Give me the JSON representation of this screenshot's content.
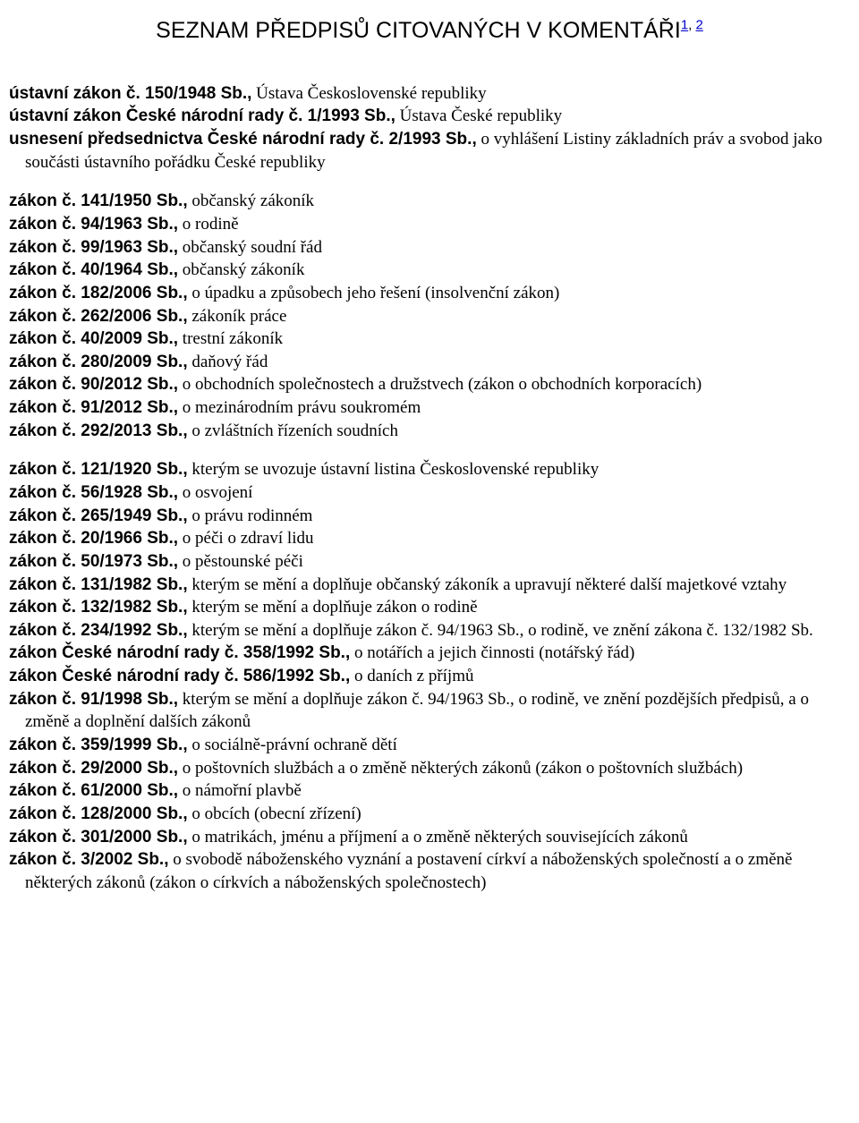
{
  "title": "SEZNAM PŘEDPISŮ CITOVANÝCH V KOMENTÁŘI",
  "footnote1": "1",
  "footnote_sep": ", ",
  "footnote2": "2",
  "blocks": [
    {
      "items": [
        {
          "ref": "ústavní zákon č. 150/1948 Sb.,",
          "desc": " Ústava Československé republiky"
        },
        {
          "ref": "ústavní zákon České národní rady č. 1/1993 Sb.,",
          "desc": " Ústava České republiky"
        },
        {
          "ref": "usnesení předsednictva České národní rady č. 2/1993 Sb.,",
          "desc": " o vyhlášení Listiny základních práv a svobod jako součásti ústavního pořádku České republiky"
        }
      ]
    },
    {
      "items": [
        {
          "ref": "zákon č. 141/1950 Sb.,",
          "desc": " občanský zákoník"
        },
        {
          "ref": "zákon č.  94/1963 Sb.,",
          "desc": " o rodině"
        },
        {
          "ref": "zákon č. 99/1963 Sb.,",
          "desc": " občanský soudní řád"
        },
        {
          "ref": "zákon č. 40/1964 Sb.,",
          "desc": " občanský zákoník"
        },
        {
          "ref": "zákon č. 182/2006 Sb.,",
          "desc": " o úpadku a způsobech jeho řešení (insolvenční zákon)"
        },
        {
          "ref": "zákon č. 262/2006 Sb.,",
          "desc": " zákoník práce"
        },
        {
          "ref": "zákon č. 40/2009 Sb.,",
          "desc": " trestní zákoník"
        },
        {
          "ref": "zákon č. 280/2009 Sb.,",
          "desc": " daňový řád"
        },
        {
          "ref": "zákon č. 90/2012 Sb.,",
          "desc": " o obchodních společnostech a družstvech (zákon o obchodních korporacích)"
        },
        {
          "ref": "zákon č. 91/2012 Sb.,",
          "desc": " o mezinárodním právu soukromém"
        },
        {
          "ref": "zákon č. 292/2013 Sb.,",
          "desc": " o zvláštních řízeních soudních"
        }
      ]
    },
    {
      "items": [
        {
          "ref": "zákon č. 121/1920 Sb.,",
          "desc": " kterým se uvozuje ústavní listina Československé republiky"
        },
        {
          "ref": "zákon č. 56/1928 Sb.,",
          "desc": " o osvojení"
        },
        {
          "ref": "zákon č. 265/1949 Sb.,",
          "desc": " o právu rodinném"
        },
        {
          "ref": "zákon č. 20/1966 Sb.,",
          "desc": " o péči o zdraví lidu"
        },
        {
          "ref": "zákon č. 50/1973 Sb.,",
          "desc": " o pěstounské péči"
        },
        {
          "ref": "zákon č. 131/1982 Sb.,",
          "desc": " kterým se mění a doplňuje občanský zákoník a upravují některé další majetkové vztahy"
        },
        {
          "ref": "zákon č. 132/1982 Sb.,",
          "desc": " kterým se mění a doplňuje zákon o rodině"
        },
        {
          "ref": "zákon č. 234/1992 Sb.,",
          "desc": " kterým se mění a doplňuje zákon č. 94/1963 Sb., o rodině, ve znění zákona č. 132/1982 Sb."
        },
        {
          "ref": "zákon České národní rady č. 358/1992 Sb.,",
          "desc": " o notářích a jejich činnosti (notářský řád)"
        },
        {
          "ref": "zákon České národní rady č. 586/1992 Sb.,",
          "desc": " o daních z příjmů"
        },
        {
          "ref": "zákon č. 91/1998 Sb.,",
          "desc": " kterým se mění a doplňuje zákon č. 94/1963 Sb., o rodině, ve znění pozdějších předpisů, a o změně a doplnění dalších zákonů"
        },
        {
          "ref": "zákon č. 359/1999 Sb.,",
          "desc": " o sociálně-právní ochraně dětí"
        },
        {
          "ref": "zákon č. 29/2000 Sb.,",
          "desc": " o poštovních službách a o změně některých zákonů (zákon o poštovních službách)"
        },
        {
          "ref": "zákon č. 61/2000 Sb.,",
          "desc": " o námořní plavbě"
        },
        {
          "ref": "zákon č. 128/2000 Sb.,",
          "desc": " o obcích (obecní zřízení)"
        },
        {
          "ref": "zákon č. 301/2000 Sb.,",
          "desc": " o matrikách, jménu a příjmení a o změně některých souvisejících zákonů"
        },
        {
          "ref": "zákon č. 3/2002 Sb.,",
          "desc": " o svobodě náboženského vyznání a postavení církví a náboženských společností a o změně některých zákonů (zákon o církvích a náboženských společnostech)"
        }
      ]
    }
  ]
}
